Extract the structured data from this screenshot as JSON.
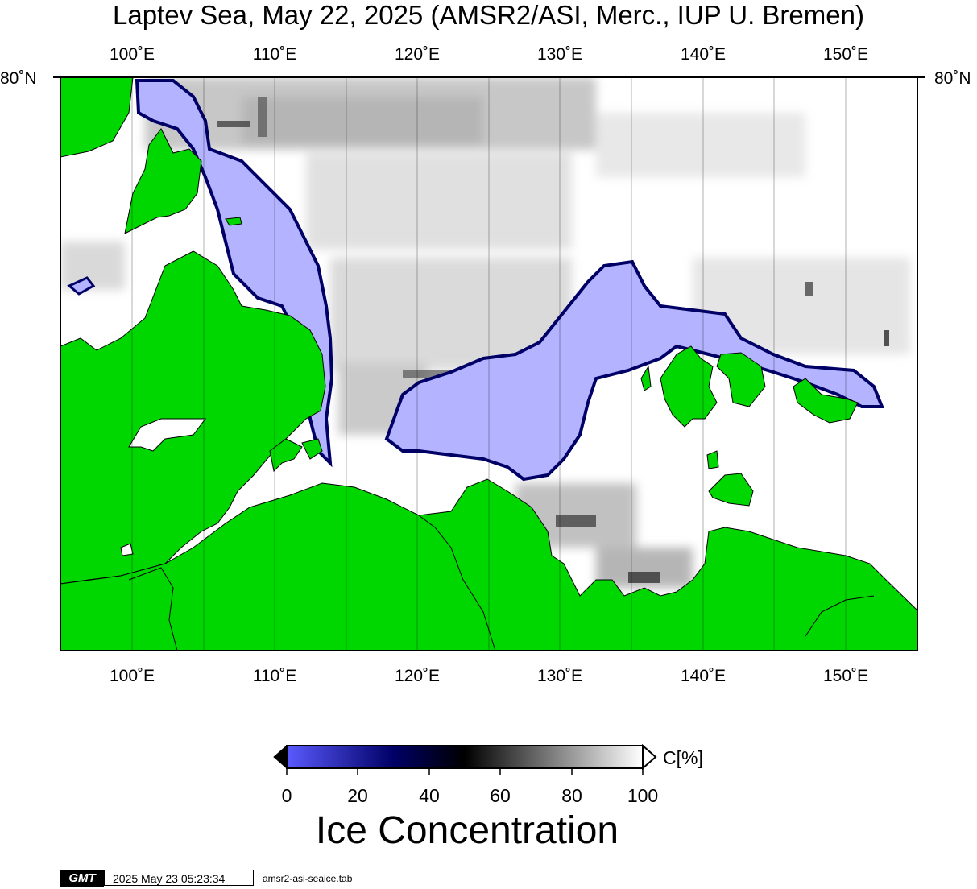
{
  "title": "Laptev Sea, May 22, 2025 (AMSR2/ASI, Merc., IUP U. Bremen)",
  "map": {
    "lon_labels": [
      "100˚E",
      "110˚E",
      "120˚E",
      "130˚E",
      "140˚E",
      "150˚E"
    ],
    "lat_labels": {
      "left": "80˚N",
      "right": "80˚N"
    },
    "colors": {
      "land": "#00d600",
      "open_water": "#b3b3ff",
      "ice_edge": "#000066",
      "ice": "#ffffff",
      "coast": "#000000"
    }
  },
  "colorbar": {
    "tick_labels": [
      "0",
      "20",
      "40",
      "60",
      "80",
      "100"
    ],
    "unit": "C[%]",
    "label": "Ice Concentration",
    "colors": {
      "low": "#5a5aff",
      "mid_low": "#000066",
      "mid": "#000000",
      "high": "#ffffff"
    }
  },
  "footer": {
    "logo": "GMT",
    "timestamp": "2025 May 23 05:23:34",
    "source_file": "amsr2-asi-seaice.tab"
  }
}
